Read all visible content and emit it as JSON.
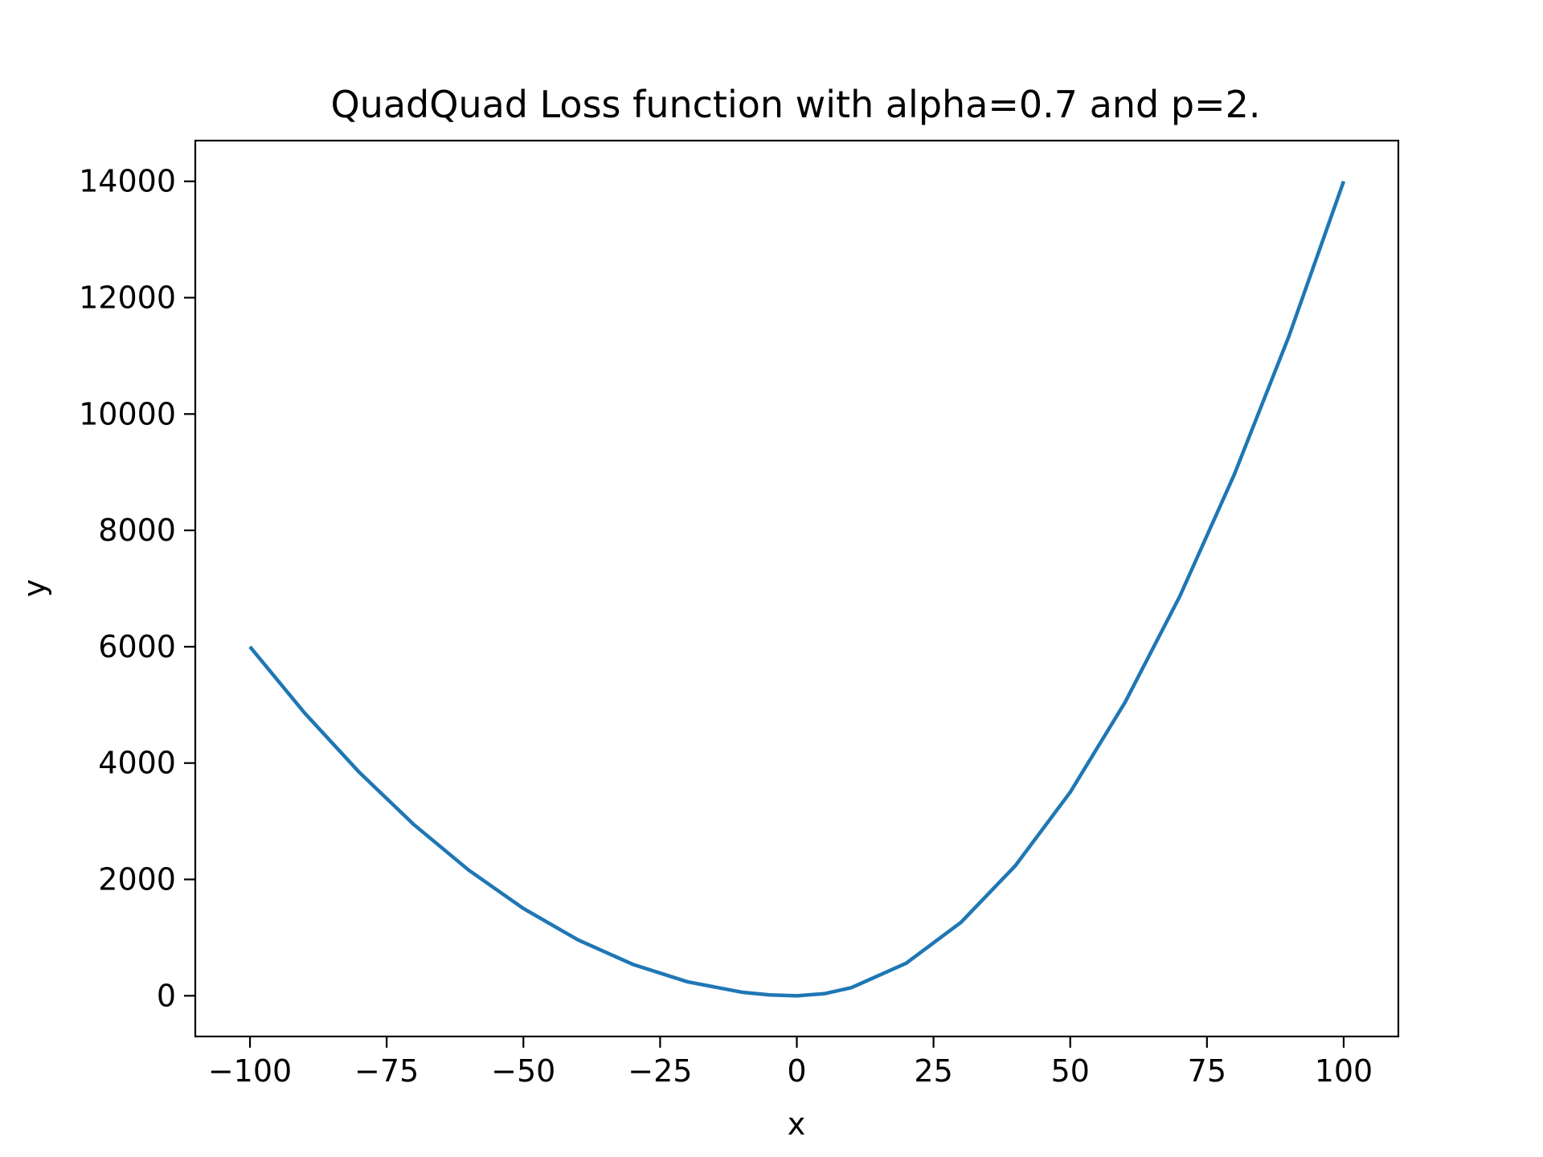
{
  "chart_data": {
    "type": "line",
    "title": "QuadQuad Loss function with alpha=0.7 and p=2.",
    "xlabel": "x",
    "ylabel": "y",
    "xlim": [
      -110,
      110
    ],
    "ylim": [
      -700,
      14700
    ],
    "xticks": [
      -100,
      -75,
      -50,
      -25,
      0,
      25,
      50,
      75,
      100
    ],
    "xtick_labels": [
      "−100",
      "−75",
      "−50",
      "−25",
      "0",
      "25",
      "50",
      "75",
      "100"
    ],
    "yticks": [
      0,
      2000,
      4000,
      6000,
      8000,
      10000,
      12000,
      14000
    ],
    "ytick_labels": [
      "0",
      "2000",
      "4000",
      "6000",
      "8000",
      "10000",
      "12000",
      "14000"
    ],
    "grid": false,
    "legend": false,
    "series": [
      {
        "color": "#1f77b4",
        "x": [
          -100,
          -90,
          -80,
          -70,
          -60,
          -50,
          -40,
          -30,
          -20,
          -10,
          -5,
          0,
          5,
          10,
          20,
          30,
          40,
          50,
          60,
          70,
          80,
          90,
          100
        ],
        "y": [
          6000,
          4860,
          3840,
          2940,
          2160,
          1500,
          960,
          540,
          240,
          60,
          15,
          0,
          35,
          140,
          560,
          1260,
          2240,
          3500,
          5040,
          6860,
          8960,
          11340,
          14000
        ]
      }
    ]
  }
}
